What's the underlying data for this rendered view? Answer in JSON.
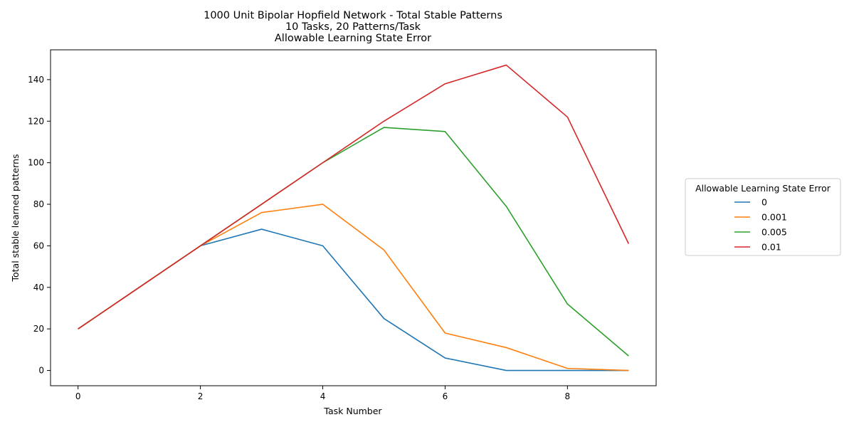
{
  "chart_data": {
    "type": "line",
    "title_lines": [
      "1000 Unit Bipolar Hopfield Network - Total Stable Patterns",
      "10 Tasks, 20 Patterns/Task",
      "Allowable Learning State Error"
    ],
    "xlabel": "Task Number",
    "ylabel": "Total stable learned patterns",
    "xlim": [
      -0.45,
      9.45
    ],
    "ylim": [
      -7.35,
      154.35
    ],
    "xticks": [
      0,
      2,
      4,
      6,
      8
    ],
    "yticks": [
      0,
      20,
      40,
      60,
      80,
      100,
      120,
      140
    ],
    "x": [
      0,
      1,
      2,
      3,
      4,
      5,
      6,
      7,
      8,
      9
    ],
    "series": [
      {
        "name": "0",
        "color": "#1f77b4",
        "values": [
          20,
          40,
          60,
          68,
          60,
          25,
          6,
          0,
          0,
          0
        ]
      },
      {
        "name": "0.001",
        "color": "#ff7f0e",
        "values": [
          20,
          40,
          60,
          76,
          80,
          58,
          18,
          11,
          1,
          0
        ]
      },
      {
        "name": "0.005",
        "color": "#2ca02c",
        "values": [
          20,
          40,
          60,
          80,
          100,
          117,
          115,
          79,
          32,
          7
        ]
      },
      {
        "name": "0.01",
        "color": "#d62728",
        "values": [
          20,
          40,
          60,
          80,
          100,
          120,
          138,
          147,
          122,
          61
        ]
      }
    ],
    "legend": {
      "title": "Allowable Learning State Error",
      "placement": "right-center"
    },
    "grid": false
  }
}
